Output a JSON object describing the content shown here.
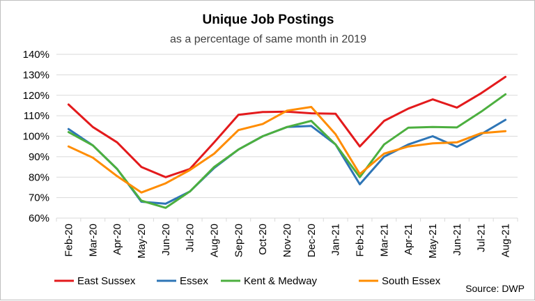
{
  "chart_data": {
    "type": "line",
    "title": "Unique Job Postings",
    "subtitle": "as a percentage of same month in 2019",
    "source": "Source: DWP",
    "categories": [
      "Feb-20",
      "Mar-20",
      "Apr-20",
      "May-20",
      "Jun-20",
      "Jul-20",
      "Aug-20",
      "Sep-20",
      "Oct-20",
      "Nov-20",
      "Dec-20",
      "Jan-21",
      "Feb-21",
      "Mar-21",
      "Apr-21",
      "May-21",
      "Jun-21",
      "Jul-21",
      "Aug-21"
    ],
    "ylim": [
      60,
      140
    ],
    "yticks": [
      60,
      70,
      80,
      90,
      100,
      110,
      120,
      130,
      140
    ],
    "ytick_format": "%",
    "grid": true,
    "legend_position": "bottom",
    "series": [
      {
        "name": "East Sussex",
        "color": "#e31a1c",
        "values": [
          115.5,
          104.5,
          97,
          85,
          80,
          84,
          97,
          110.5,
          111.8,
          112,
          111.2,
          111,
          95,
          107.5,
          113.5,
          118,
          114,
          121,
          129
        ]
      },
      {
        "name": "Essex",
        "color": "#2e75b6",
        "values": [
          103.5,
          95.5,
          84,
          68,
          67,
          73,
          84.5,
          93.5,
          100,
          104.5,
          105,
          96,
          76.5,
          90,
          96,
          100,
          94.8,
          101,
          108
        ]
      },
      {
        "name": "Kent & Medway",
        "color": "#4caf3f",
        "values": [
          102,
          95.5,
          84,
          68.5,
          65,
          73,
          85,
          93.5,
          100,
          104.5,
          107.5,
          96,
          80,
          96,
          104.2,
          104.5,
          104.3,
          112,
          120.5
        ]
      },
      {
        "name": "South Essex",
        "color": "#ff8c00",
        "values": [
          95,
          89.5,
          80.5,
          72.5,
          77,
          83.5,
          91.5,
          103,
          106,
          112.5,
          114.3,
          101,
          81.5,
          91.5,
          95,
          96.5,
          97,
          101.5,
          102.5
        ]
      }
    ]
  }
}
